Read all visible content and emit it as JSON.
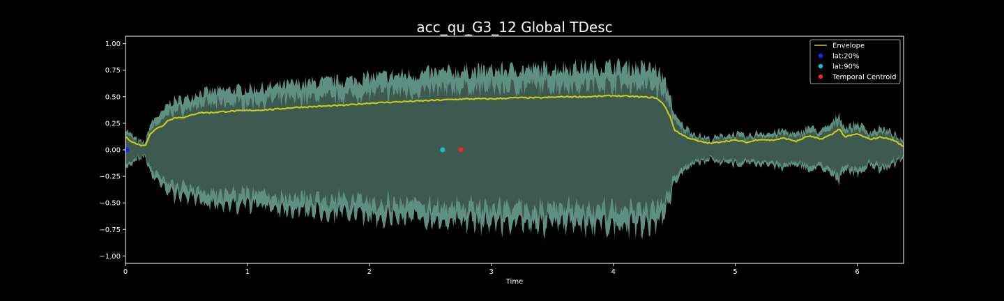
{
  "chart_data": {
    "type": "line",
    "title": "acc_qu_G3_12 Global TDesc",
    "xlabel": "Time",
    "ylabel": "",
    "xlim": [
      0,
      6.38
    ],
    "ylim": [
      -1.07,
      1.07
    ],
    "x_ticks": [
      "0",
      "1",
      "2",
      "3",
      "4",
      "5",
      "6"
    ],
    "y_ticks": [
      "1.00",
      "0.75",
      "0.50",
      "0.25",
      "0.00",
      "−0.25",
      "−0.50",
      "−0.75",
      "−1.00"
    ],
    "grid": false,
    "legend_position": "top-right",
    "colors": {
      "background": "#000000",
      "waveform_fill": "#3e5a50",
      "waveform_peaks": "#6fa898",
      "envelope": "#c8c81a",
      "lat20": "#1f1fff",
      "lat90": "#17becf",
      "centroid": "#ff1f1f"
    },
    "series": [
      {
        "name": "Envelope",
        "x": [
          0.0,
          0.05,
          0.1,
          0.14,
          0.17,
          0.2,
          0.25,
          0.3,
          0.35,
          0.4,
          0.5,
          0.6,
          0.7,
          0.8,
          1.0,
          1.2,
          1.4,
          1.6,
          1.8,
          2.0,
          2.2,
          2.4,
          2.6,
          2.8,
          3.0,
          3.2,
          3.4,
          3.6,
          3.8,
          4.0,
          4.2,
          4.35,
          4.42,
          4.47,
          4.5,
          4.55,
          4.6,
          4.7,
          4.8,
          4.9,
          5.0,
          5.1,
          5.2,
          5.3,
          5.4,
          5.5,
          5.6,
          5.7,
          5.8,
          5.85,
          5.9,
          6.0,
          6.1,
          6.2,
          6.3,
          6.38
        ],
        "values": [
          0.12,
          0.08,
          0.05,
          0.04,
          0.05,
          0.15,
          0.2,
          0.22,
          0.28,
          0.3,
          0.31,
          0.35,
          0.35,
          0.36,
          0.37,
          0.38,
          0.4,
          0.41,
          0.42,
          0.44,
          0.45,
          0.46,
          0.47,
          0.48,
          0.48,
          0.49,
          0.49,
          0.5,
          0.5,
          0.51,
          0.5,
          0.49,
          0.42,
          0.3,
          0.19,
          0.15,
          0.12,
          0.08,
          0.06,
          0.08,
          0.09,
          0.07,
          0.1,
          0.09,
          0.11,
          0.08,
          0.13,
          0.1,
          0.15,
          0.2,
          0.12,
          0.15,
          0.1,
          0.12,
          0.09,
          0.03
        ]
      },
      {
        "name": "lat:20%",
        "x": [
          0.01
        ],
        "values": [
          0.0
        ]
      },
      {
        "name": "lat:90%",
        "x": [
          2.6
        ],
        "values": [
          0.0
        ]
      },
      {
        "name": "Temporal Centroid",
        "x": [
          2.75
        ],
        "values": [
          0.0
        ]
      }
    ]
  }
}
